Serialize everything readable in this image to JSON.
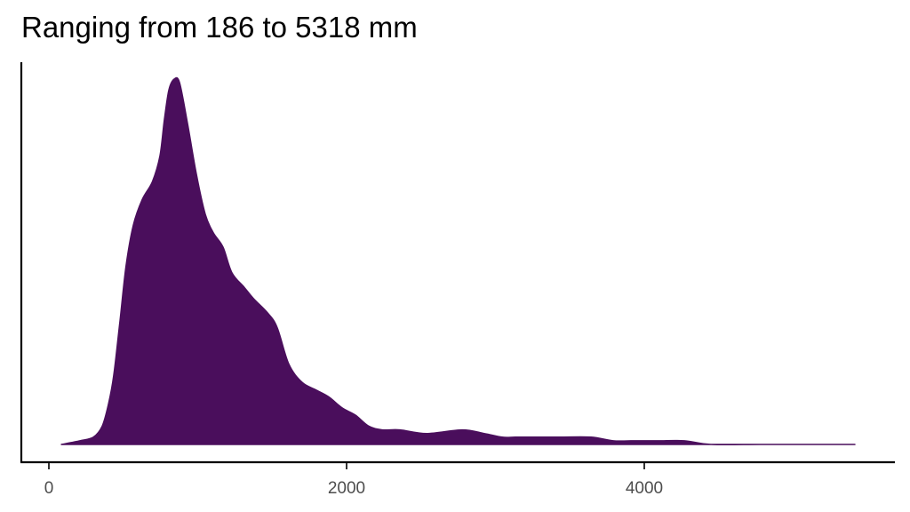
{
  "chart_data": {
    "type": "area",
    "subtype": "density",
    "title": "Ranging from 186 to 5318 mm",
    "xlabel": "",
    "ylabel": "",
    "xlim": [
      -200,
      5700
    ],
    "ylim": [
      0,
      1.05
    ],
    "x_ticks": [
      0,
      2000,
      4000
    ],
    "x_tick_labels": [
      "0",
      "2000",
      "4000"
    ],
    "y_ticks": [],
    "grid": false,
    "legend": null,
    "fill_color": "#4a0e5c",
    "series": [
      {
        "name": "density",
        "x": [
          84,
          209,
          299,
          358,
          400,
          436,
          478,
          519,
          567,
          627,
          696,
          746,
          776,
          806,
          842,
          878,
          931,
          991,
          1051,
          1104,
          1170,
          1230,
          1313,
          1373,
          1469,
          1534,
          1612,
          1701,
          1791,
          1881,
          1970,
          2060,
          2149,
          2239,
          2358,
          2537,
          2776,
          2925,
          3045,
          3134,
          3254,
          3433,
          3642,
          3791,
          3910,
          4090,
          4269,
          4448,
          4776,
          5075,
          5415
        ],
        "y": [
          0.0,
          0.01,
          0.02,
          0.05,
          0.11,
          0.19,
          0.34,
          0.49,
          0.6,
          0.67,
          0.72,
          0.79,
          0.89,
          0.97,
          1.0,
          0.99,
          0.88,
          0.74,
          0.63,
          0.58,
          0.54,
          0.47,
          0.43,
          0.4,
          0.36,
          0.32,
          0.22,
          0.17,
          0.15,
          0.13,
          0.1,
          0.08,
          0.05,
          0.04,
          0.04,
          0.03,
          0.04,
          0.03,
          0.02,
          0.02,
          0.02,
          0.02,
          0.02,
          0.01,
          0.01,
          0.01,
          0.01,
          0.0,
          0.0,
          0.0,
          0.0
        ]
      }
    ]
  },
  "plot": {
    "title": "Ranging from 186 to 5318 mm",
    "x_ticks": [
      {
        "label": "0",
        "px": 55
      },
      {
        "label": "2000",
        "px": 390
      },
      {
        "label": "4000",
        "px": 725
      }
    ]
  }
}
